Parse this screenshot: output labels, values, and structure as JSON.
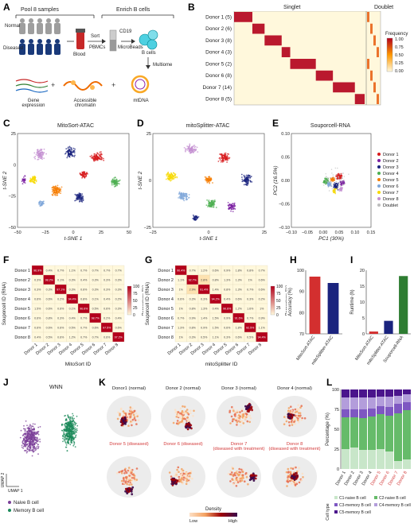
{
  "panels": {
    "A": {
      "label": "A",
      "headers": [
        "Pool 8 samples",
        "Enrich B cells"
      ],
      "groups": [
        "Normal",
        "Diseased"
      ],
      "blood": "Blood",
      "sort": "Sort",
      "pbmcs": "PBMCs",
      "cd19": "CD19",
      "microbeads": "MicroBeads",
      "bcells": "B cells",
      "multiome": "Multiome",
      "outputs": [
        "Gene expression",
        "Accessible chromatin",
        "mtDNA"
      ]
    },
    "B": {
      "label": "B",
      "groups": [
        "Singlet",
        "Doublet"
      ],
      "rows": [
        "Donor 1 (5)",
        "Donor 2 (6)",
        "Donor 3 (8)",
        "Donor 4 (3)",
        "Donor 5 (2)",
        "Donor 6 (8)",
        "Donor 7 (14)",
        "Donor 8 (5)"
      ],
      "legend_title": "Frequency",
      "legend_ticks": [
        "1.00",
        "0.75",
        "0.50",
        "0.25",
        "0.00"
      ]
    },
    "C": {
      "label": "C",
      "title": "MitoSort-ATAC",
      "xlabel": "t-SNE 1",
      "ylabel": "t-SNE 2",
      "xticks": [
        "−50",
        "−25",
        "0",
        "25",
        "50"
      ],
      "yticks": [
        "25",
        "0",
        "−25",
        "−50"
      ]
    },
    "D": {
      "label": "D",
      "title": "mitoSplitter-ATAC",
      "xlabel": "t-SNE 1",
      "ylabel": "t-SNE 2",
      "xticks": [
        "−25",
        "0",
        "25"
      ],
      "yticks": [
        "25",
        "0",
        "−25"
      ]
    },
    "E": {
      "label": "E",
      "title": "Souporcell-RNA",
      "xlabel": "PC1 (30%)",
      "ylabel": "PC2 (16.5%)",
      "xticks": [
        "−0.10",
        "−0.05",
        "0.00",
        "0.05",
        "0.10",
        "0.15"
      ],
      "yticks": [
        "0.10",
        "0.05",
        "0.00",
        "−0.05",
        "−0.10"
      ],
      "legend": [
        "Donor 1",
        "Donor 2",
        "Donor 3",
        "Donor 4",
        "Donor 5",
        "Donor 6",
        "Donor 7",
        "Donor 8",
        "Doublet"
      ]
    },
    "F": {
      "label": "F",
      "xlabel": "MitoSort ID",
      "ylabel": "Souporcell ID (RNA)",
      "legend_title": "Percentage (%)",
      "legend_ticks": [
        "100",
        "75",
        "50",
        "25",
        "0"
      ],
      "rows": [
        "Donor 1",
        "Donor 2",
        "Donor 3",
        "Donor 4",
        "Donor 5",
        "Donor 6",
        "Donor 7",
        "Donor 8"
      ],
      "cols": [
        "Donor 1",
        "Donor 2",
        "Donor 3",
        "Donor 4",
        "Donor 5",
        "Donor 6",
        "Donor 7",
        "Donor 8"
      ],
      "cells": [
        [
          "96.9%",
          "0.4%",
          "0.7%",
          "1.1%",
          "0.7%",
          "0.7%",
          "0.7%",
          "0.7%"
        ],
        [
          "0.3%",
          "98.2%",
          "0.1%",
          "0.3%",
          "0.4%",
          "0.3%",
          "0.3%",
          "0.3%"
        ],
        [
          "0.3%",
          "0.3%",
          "97.1%",
          "0.3%",
          "0.6%",
          "0.3%",
          "0.3%",
          "0.3%"
        ],
        [
          "0.6%",
          "0.6%",
          "0.2%",
          "94.4%",
          "0.8%",
          "0.1%",
          "0.4%",
          "0.2%"
        ],
        [
          "1.5%",
          "0.6%",
          "0.6%",
          "0.1%",
          "96.6%",
          "0.5%",
          "0.6%",
          "0.3%"
        ],
        [
          "0.6%",
          "0.8%",
          "0.3%",
          "0.4%",
          "0.7%",
          "98.7%",
          "0.2%",
          "0.4%"
        ],
        [
          "0.6%",
          "0.6%",
          "0.6%",
          "0.5%",
          "0.7%",
          "0.6%",
          "97.5%",
          "0.6%"
        ],
        [
          "0.4%",
          "0.5%",
          "0.6%",
          "1.2%",
          "0.7%",
          "0.7%",
          "0.6%",
          "97.2%"
        ]
      ]
    },
    "G": {
      "label": "G",
      "xlabel": "mitoSplitter ID",
      "ylabel": "Souporcell ID (RNA)",
      "legend_title": "Percentage (%)",
      "legend_ticks": [
        "100",
        "75",
        "50",
        "25",
        "0"
      ],
      "rows": [
        "Donor 1",
        "Donor 2",
        "Donor 3",
        "Donor 4",
        "Donor 5",
        "Donor 6",
        "Donor 7",
        "Donor 8"
      ],
      "cols": [
        "Donor 1",
        "Donor 2",
        "Donor 3",
        "Donor 4",
        "Donor 5",
        "Donor 6",
        "Donor 7",
        "Donor 8"
      ],
      "cells": [
        [
          "90.4%",
          "0.7%",
          "1.2%",
          "0.6%",
          "0.9%",
          "1.8%",
          "0.8%",
          "0.7%"
        ],
        [
          "1.1%",
          "92.7%",
          "2.8%",
          "0.8%",
          "1.3%",
          "1.3%",
          "1%",
          "0.6%"
        ],
        [
          "1%",
          "2.9%",
          "91.4%",
          "1.4%",
          "0.8%",
          "1.3%",
          "0.7%",
          "0.6%"
        ],
        [
          "0.6%",
          "0.3%",
          "0.3%",
          "94.2%",
          "0.4%",
          "0.6%",
          "0.3%",
          "0.2%"
        ],
        [
          "1%",
          "0.8%",
          "1.3%",
          "0.4%",
          "90.6%",
          "1.2%",
          "1.6%",
          "1%"
        ],
        [
          "0.7%",
          "0.9%",
          "1.4%",
          "1.5%",
          "0.9%",
          "91.6%",
          "0.7%",
          "0.9%"
        ],
        [
          "1.3%",
          "0.8%",
          "0.9%",
          "1.5%",
          "0.6%",
          "1.8%",
          "92.5%",
          "1.1%"
        ],
        [
          "1%",
          "0.3%",
          "0.5%",
          "1.1%",
          "0.3%",
          "0.6%",
          "0.5%",
          "94.4%"
        ]
      ]
    },
    "H": {
      "label": "H",
      "ylabel": "Accuracy (%)"
    },
    "I": {
      "label": "I",
      "ylabel": "Runtime (h)"
    },
    "J": {
      "label": "J",
      "title": "WNN",
      "xlabel": "UMAP 1",
      "ylabel": "UMAP 2",
      "legend": [
        "Naive B cell",
        "Memory B cell"
      ]
    },
    "K": {
      "label": "K",
      "titles": [
        "Donor1 (normal)",
        "Donor 2 (normal)",
        "Donor 3 (normal)",
        "Donor 4 (normal)",
        "Donor 5 (diseased)",
        "Donor 6 (diseased)",
        "Donor 7",
        "(diseased with treatment)",
        "Donor 8",
        "(diseased with treatment)"
      ],
      "legend_title": "Density",
      "legend_low": "Low",
      "legend_high": "High"
    },
    "L": {
      "label": "L",
      "ylabel": "Percentage (%)",
      "yticks": [
        "100",
        "75",
        "50",
        "25",
        "0"
      ],
      "cell_type_label": "Cell type",
      "legend": [
        "C1-naive B cell",
        "C2-naive B cell",
        "C3-memory B cell",
        "C4-memory B cell",
        "C5-memory B cell"
      ]
    }
  },
  "colors": {
    "donors": [
      "#d7191c",
      "#7b1fa2",
      "#1a237e",
      "#4caf50",
      "#f57c00",
      "#7fa7d9",
      "#f7d900",
      "#c490d1",
      "#bdbdbd"
    ],
    "heat_low": "#fff8dc",
    "heat_high": "#b3001b",
    "naive": "#7b3f98",
    "memory": "#1b8a5a",
    "accent_red": "#d33b3b"
  },
  "chart_data": [
    {
      "panel": "H",
      "type": "bar",
      "categories": [
        "MitoSort-ATAC",
        "mitoSplitter-ATAC"
      ],
      "values": [
        97,
        94
      ],
      "ylabel": "Accuracy (%)",
      "yticks": [
        "100",
        "90",
        "80",
        "70"
      ],
      "ylim": [
        70,
        100
      ],
      "colors": [
        "#d32f2f",
        "#1a237e"
      ]
    },
    {
      "panel": "I",
      "type": "bar",
      "categories": [
        "MitoSort-ATAC",
        "mitoSplitter-ATAC",
        "Souporcell-RNA"
      ],
      "values": [
        0.8,
        4.5,
        20
      ],
      "ylabel": "Runtime (h)",
      "yticks": [
        "20",
        "15",
        "10",
        "5",
        "0"
      ],
      "ylim": [
        0,
        22
      ],
      "colors": [
        "#d32f2f",
        "#1a237e",
        "#2e7d32"
      ]
    },
    {
      "panel": "L",
      "type": "bar",
      "stacked": true,
      "categories": [
        "Donor 1",
        "Donor 2",
        "Donor 3",
        "Donor 4",
        "Donor 5",
        "Donor 6",
        "Donor 7",
        "Donor 8"
      ],
      "series": [
        {
          "name": "C1-naive B cell",
          "values": [
            25,
            27,
            24,
            24,
            25,
            22,
            10,
            12
          ],
          "color": "#c8e6c9"
        },
        {
          "name": "C2-naive B cell",
          "values": [
            40,
            38,
            40,
            42,
            44,
            45,
            60,
            62
          ],
          "color": "#66bb6a"
        },
        {
          "name": "C3-memory B cell",
          "values": [
            10,
            10,
            11,
            10,
            10,
            11,
            12,
            10
          ],
          "color": "#7e57c2"
        },
        {
          "name": "C4-memory B cell",
          "values": [
            15,
            15,
            15,
            14,
            12,
            13,
            10,
            10
          ],
          "color": "#b39ddb"
        },
        {
          "name": "C5-memory B cell",
          "values": [
            10,
            10,
            10,
            10,
            9,
            9,
            8,
            6
          ],
          "color": "#4a148c"
        }
      ],
      "ylim": [
        0,
        100
      ],
      "highlighted_categories": [
        "Donor 5",
        "Donor 6",
        "Donor 7",
        "Donor 8"
      ]
    }
  ]
}
